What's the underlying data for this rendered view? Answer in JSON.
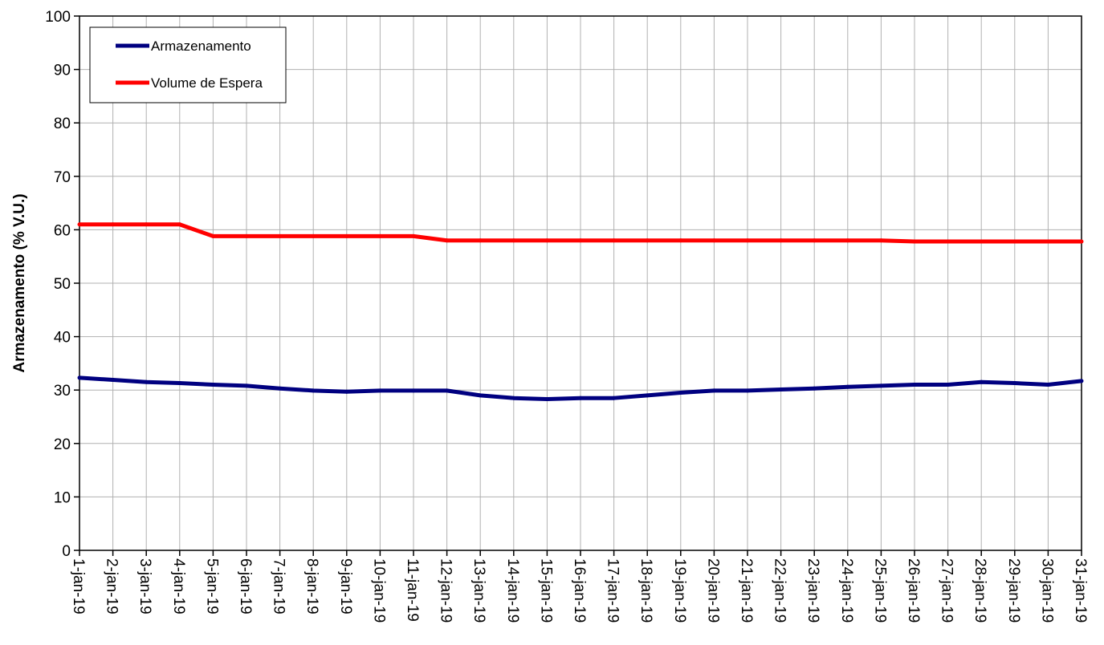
{
  "chart_data": {
    "type": "line",
    "title": "",
    "xlabel": "",
    "ylabel": "Armazenamento (% V.U.)",
    "ylim": [
      0,
      100
    ],
    "y_ticks": [
      "0",
      "10",
      "20",
      "30",
      "40",
      "50",
      "60",
      "70",
      "80",
      "90",
      "100"
    ],
    "grid": true,
    "legend_position": "top-left",
    "categories": [
      "1-jan-19",
      "2-jan-19",
      "3-jan-19",
      "4-jan-19",
      "5-jan-19",
      "6-jan-19",
      "7-jan-19",
      "8-jan-19",
      "9-jan-19",
      "10-jan-19",
      "11-jan-19",
      "12-jan-19",
      "13-jan-19",
      "14-jan-19",
      "15-jan-19",
      "16-jan-19",
      "17-jan-19",
      "18-jan-19",
      "19-jan-19",
      "20-jan-19",
      "21-jan-19",
      "22-jan-19",
      "23-jan-19",
      "24-jan-19",
      "25-jan-19",
      "26-jan-19",
      "27-jan-19",
      "28-jan-19",
      "29-jan-19",
      "30-jan-19",
      "31-jan-19"
    ],
    "series": [
      {
        "name": "Armazenamento",
        "color": "#000080",
        "values": [
          32.3,
          31.9,
          31.5,
          31.3,
          31.0,
          30.8,
          30.3,
          29.9,
          29.7,
          29.9,
          29.9,
          29.9,
          29.0,
          28.5,
          28.3,
          28.5,
          28.5,
          29.0,
          29.5,
          29.9,
          29.9,
          30.1,
          30.3,
          30.6,
          30.8,
          31.0,
          31.0,
          31.5,
          31.3,
          31.0,
          31.7
        ]
      },
      {
        "name": "Volume de Espera",
        "color": "#ff0000",
        "values": [
          61.0,
          61.0,
          61.0,
          61.0,
          58.8,
          58.8,
          58.8,
          58.8,
          58.8,
          58.8,
          58.8,
          58.0,
          58.0,
          58.0,
          58.0,
          58.0,
          58.0,
          58.0,
          58.0,
          58.0,
          58.0,
          58.0,
          58.0,
          58.0,
          58.0,
          57.8,
          57.8,
          57.8,
          57.8,
          57.8,
          57.8
        ]
      }
    ]
  }
}
